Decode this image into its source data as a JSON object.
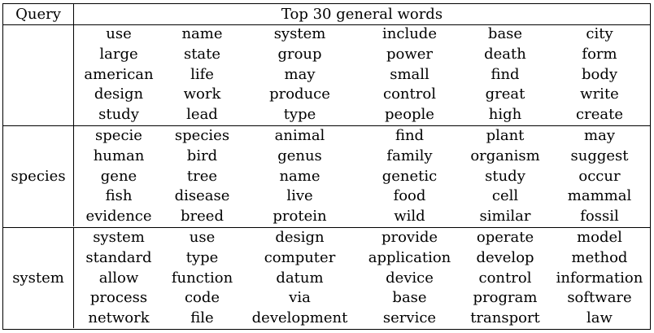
{
  "header": {
    "query_label": "Query",
    "words_label": "Top 30 general words"
  },
  "blocks": [
    {
      "query": "",
      "words": [
        [
          "use",
          "name",
          "system",
          "include",
          "base",
          "city"
        ],
        [
          "large",
          "state",
          "group",
          "power",
          "death",
          "form"
        ],
        [
          "american",
          "life",
          "may",
          "small",
          "find",
          "body"
        ],
        [
          "design",
          "work",
          "produce",
          "control",
          "great",
          "write"
        ],
        [
          "study",
          "lead",
          "type",
          "people",
          "high",
          "create"
        ]
      ]
    },
    {
      "query": "species",
      "words": [
        [
          "specie",
          "species",
          "animal",
          "find",
          "plant",
          "may"
        ],
        [
          "human",
          "bird",
          "genus",
          "family",
          "organism",
          "suggest"
        ],
        [
          "gene",
          "tree",
          "name",
          "genetic",
          "study",
          "occur"
        ],
        [
          "fish",
          "disease",
          "live",
          "food",
          "cell",
          "mammal"
        ],
        [
          "evidence",
          "breed",
          "protein",
          "wild",
          "similar",
          "fossil"
        ]
      ]
    },
    {
      "query": "system",
      "words": [
        [
          "system",
          "use",
          "design",
          "provide",
          "operate",
          "model"
        ],
        [
          "standard",
          "type",
          "computer",
          "application",
          "develop",
          "method"
        ],
        [
          "allow",
          "function",
          "datum",
          "device",
          "control",
          "information"
        ],
        [
          "process",
          "code",
          "via",
          "base",
          "program",
          "software"
        ],
        [
          "network",
          "file",
          "development",
          "service",
          "transport",
          "law"
        ]
      ]
    }
  ]
}
